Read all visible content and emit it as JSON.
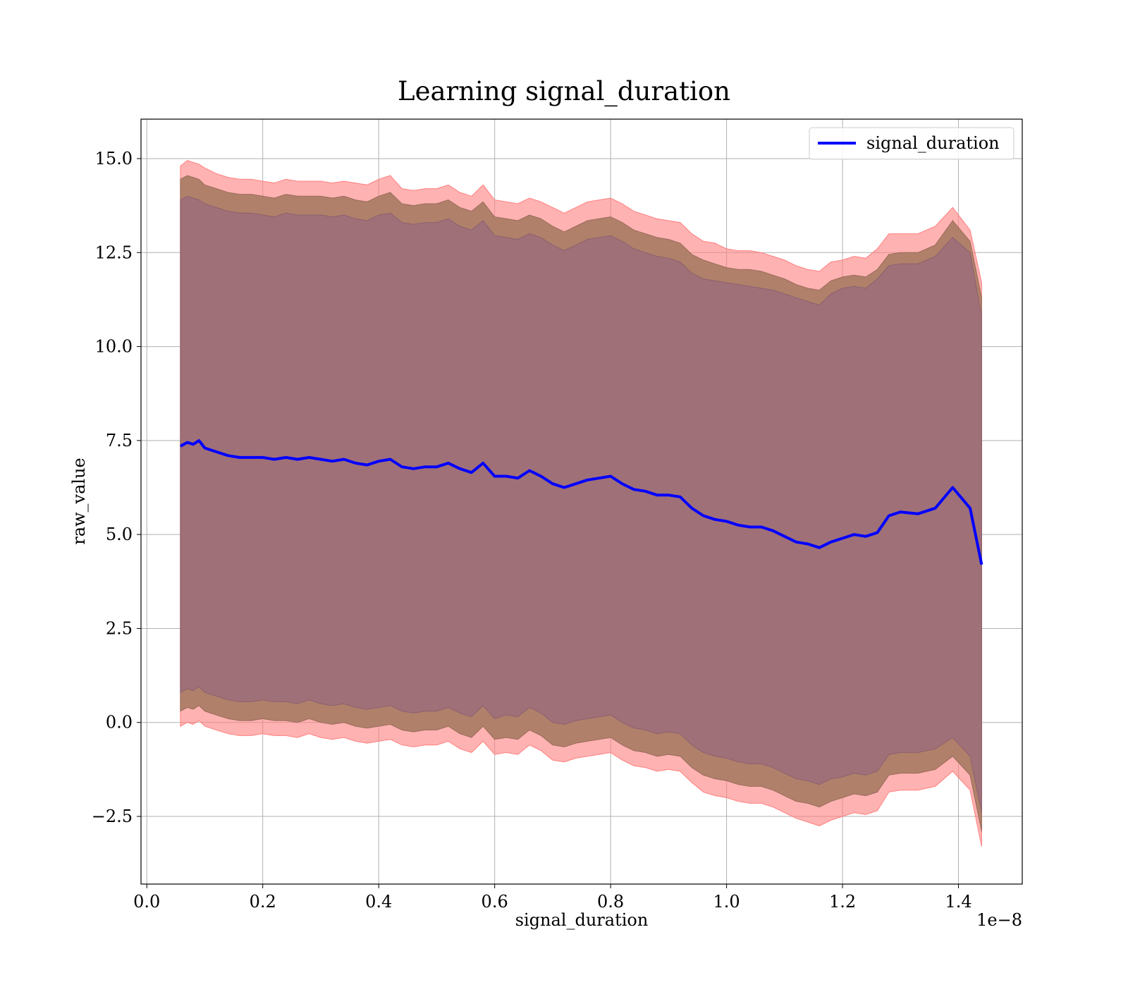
{
  "chart_data": {
    "type": "area",
    "title": "Learning signal_duration",
    "xlabel": "signal_duration",
    "ylabel": "raw_value",
    "x_offset_label": "1e−8",
    "x_scale": 1e-08,
    "xlim": [
      -0.01,
      1.51
    ],
    "ylim": [
      -4.3,
      16.05
    ],
    "xticks": [
      0.0,
      0.2,
      0.4,
      0.6,
      0.8,
      1.0,
      1.2,
      1.4
    ],
    "xtick_labels": [
      "0.0",
      "0.2",
      "0.4",
      "0.6",
      "0.8",
      "1.0",
      "1.2",
      "1.4"
    ],
    "yticks": [
      15.0,
      12.5,
      10.0,
      7.5,
      5.0,
      2.5,
      0.0,
      -2.5
    ],
    "ytick_labels": [
      "15.0",
      "12.5",
      "10.0",
      "7.5",
      "5.0",
      "2.5",
      "0.0",
      "−2.5"
    ],
    "grid": true,
    "legend": {
      "position": "top-right"
    },
    "colors": {
      "mean": "#0000ff",
      "band_outer": "#ff7f7f",
      "band_middle": "#b0806a",
      "band_inner": "#a07078"
    },
    "series": [
      {
        "name": "signal_duration",
        "x": [
          0.058,
          0.07,
          0.08,
          0.09,
          0.1,
          0.12,
          0.14,
          0.16,
          0.18,
          0.2,
          0.22,
          0.24,
          0.26,
          0.28,
          0.3,
          0.32,
          0.34,
          0.36,
          0.38,
          0.4,
          0.42,
          0.44,
          0.46,
          0.48,
          0.5,
          0.52,
          0.54,
          0.56,
          0.58,
          0.6,
          0.62,
          0.64,
          0.66,
          0.68,
          0.7,
          0.72,
          0.74,
          0.76,
          0.78,
          0.8,
          0.82,
          0.84,
          0.86,
          0.88,
          0.9,
          0.92,
          0.94,
          0.96,
          0.98,
          1.0,
          1.02,
          1.04,
          1.06,
          1.08,
          1.1,
          1.12,
          1.14,
          1.16,
          1.18,
          1.2,
          1.22,
          1.24,
          1.26,
          1.28,
          1.3,
          1.33,
          1.36,
          1.39,
          1.42,
          1.44
        ],
        "mean": [
          7.35,
          7.45,
          7.4,
          7.5,
          7.3,
          7.2,
          7.1,
          7.05,
          7.05,
          7.05,
          7.0,
          7.05,
          7.0,
          7.05,
          7.0,
          6.95,
          7.0,
          6.9,
          6.85,
          6.95,
          7.0,
          6.8,
          6.75,
          6.8,
          6.8,
          6.9,
          6.75,
          6.65,
          6.9,
          6.55,
          6.55,
          6.5,
          6.7,
          6.55,
          6.35,
          6.25,
          6.35,
          6.45,
          6.5,
          6.55,
          6.35,
          6.2,
          6.15,
          6.05,
          6.05,
          6.0,
          5.7,
          5.5,
          5.4,
          5.35,
          5.25,
          5.2,
          5.2,
          5.1,
          4.95,
          4.8,
          4.75,
          4.65,
          4.8,
          4.9,
          5.0,
          4.95,
          5.05,
          5.5,
          5.6,
          5.55,
          5.7,
          6.25,
          5.7,
          4.2
        ],
        "outer_upper": [
          14.8,
          14.95,
          14.9,
          14.85,
          14.75,
          14.6,
          14.5,
          14.45,
          14.45,
          14.4,
          14.35,
          14.45,
          14.4,
          14.4,
          14.4,
          14.35,
          14.4,
          14.35,
          14.3,
          14.45,
          14.55,
          14.2,
          14.15,
          14.2,
          14.2,
          14.3,
          14.1,
          14.0,
          14.3,
          13.9,
          13.85,
          13.8,
          13.95,
          13.85,
          13.7,
          13.55,
          13.7,
          13.85,
          13.9,
          13.95,
          13.8,
          13.6,
          13.5,
          13.4,
          13.35,
          13.3,
          13.0,
          12.8,
          12.75,
          12.6,
          12.55,
          12.55,
          12.5,
          12.4,
          12.3,
          12.15,
          12.05,
          12.0,
          12.25,
          12.3,
          12.4,
          12.35,
          12.6,
          13.0,
          13.0,
          13.0,
          13.2,
          13.7,
          13.1,
          11.7
        ],
        "middle_upper": [
          14.45,
          14.55,
          14.5,
          14.45,
          14.3,
          14.2,
          14.1,
          14.05,
          14.05,
          14.0,
          13.95,
          14.05,
          14.0,
          14.0,
          14.0,
          13.95,
          14.0,
          13.9,
          13.85,
          14.0,
          14.1,
          13.8,
          13.75,
          13.8,
          13.8,
          13.9,
          13.7,
          13.6,
          13.85,
          13.45,
          13.4,
          13.35,
          13.5,
          13.4,
          13.2,
          13.05,
          13.2,
          13.35,
          13.4,
          13.45,
          13.3,
          13.1,
          13.0,
          12.9,
          12.85,
          12.75,
          12.45,
          12.3,
          12.2,
          12.1,
          12.05,
          12.05,
          12.0,
          11.9,
          11.8,
          11.65,
          11.55,
          11.5,
          11.75,
          11.85,
          11.9,
          11.85,
          12.05,
          12.45,
          12.5,
          12.5,
          12.7,
          13.35,
          12.8,
          11.3
        ],
        "inner_upper": [
          13.9,
          14.0,
          13.95,
          13.9,
          13.8,
          13.7,
          13.6,
          13.55,
          13.55,
          13.5,
          13.45,
          13.55,
          13.5,
          13.5,
          13.5,
          13.45,
          13.5,
          13.4,
          13.35,
          13.5,
          13.55,
          13.3,
          13.25,
          13.3,
          13.3,
          13.4,
          13.2,
          13.1,
          13.35,
          12.95,
          12.9,
          12.85,
          13.0,
          12.9,
          12.7,
          12.55,
          12.7,
          12.85,
          12.9,
          12.95,
          12.8,
          12.6,
          12.5,
          12.4,
          12.35,
          12.25,
          11.95,
          11.8,
          11.75,
          11.7,
          11.65,
          11.6,
          11.55,
          11.5,
          11.4,
          11.3,
          11.2,
          11.1,
          11.4,
          11.55,
          11.6,
          11.55,
          11.8,
          12.15,
          12.2,
          12.2,
          12.4,
          12.9,
          12.5,
          10.8
        ],
        "inner_lower": [
          0.8,
          0.9,
          0.85,
          0.95,
          0.8,
          0.7,
          0.6,
          0.55,
          0.55,
          0.6,
          0.55,
          0.55,
          0.5,
          0.6,
          0.5,
          0.45,
          0.5,
          0.4,
          0.35,
          0.4,
          0.45,
          0.3,
          0.25,
          0.3,
          0.3,
          0.4,
          0.25,
          0.15,
          0.45,
          0.1,
          0.2,
          0.15,
          0.4,
          0.25,
          0.0,
          -0.05,
          0.05,
          0.1,
          0.15,
          0.2,
          0.0,
          -0.15,
          -0.2,
          -0.3,
          -0.25,
          -0.3,
          -0.6,
          -0.8,
          -0.9,
          -0.95,
          -1.05,
          -1.1,
          -1.1,
          -1.2,
          -1.35,
          -1.5,
          -1.55,
          -1.65,
          -1.5,
          -1.45,
          -1.35,
          -1.4,
          -1.3,
          -0.85,
          -0.8,
          -0.8,
          -0.7,
          -0.4,
          -0.9,
          -2.4
        ],
        "middle_lower": [
          0.3,
          0.4,
          0.35,
          0.45,
          0.3,
          0.2,
          0.1,
          0.05,
          0.05,
          0.1,
          0.05,
          0.05,
          0.0,
          0.1,
          0.0,
          -0.05,
          0.0,
          -0.1,
          -0.15,
          -0.1,
          -0.05,
          -0.2,
          -0.25,
          -0.2,
          -0.2,
          -0.1,
          -0.3,
          -0.4,
          -0.1,
          -0.45,
          -0.4,
          -0.45,
          -0.2,
          -0.35,
          -0.6,
          -0.65,
          -0.55,
          -0.5,
          -0.45,
          -0.4,
          -0.6,
          -0.75,
          -0.8,
          -0.9,
          -0.85,
          -0.9,
          -1.2,
          -1.4,
          -1.5,
          -1.55,
          -1.65,
          -1.7,
          -1.7,
          -1.8,
          -1.95,
          -2.1,
          -2.15,
          -2.25,
          -2.1,
          -2.0,
          -1.9,
          -1.95,
          -1.85,
          -1.4,
          -1.35,
          -1.35,
          -1.25,
          -0.9,
          -1.4,
          -2.9
        ],
        "outer_lower": [
          -0.1,
          0.0,
          -0.05,
          0.05,
          -0.1,
          -0.2,
          -0.3,
          -0.35,
          -0.35,
          -0.3,
          -0.35,
          -0.35,
          -0.4,
          -0.3,
          -0.4,
          -0.45,
          -0.4,
          -0.5,
          -0.55,
          -0.5,
          -0.45,
          -0.6,
          -0.65,
          -0.6,
          -0.6,
          -0.5,
          -0.7,
          -0.8,
          -0.5,
          -0.85,
          -0.8,
          -0.85,
          -0.6,
          -0.75,
          -1.0,
          -1.05,
          -0.95,
          -0.9,
          -0.85,
          -0.8,
          -1.0,
          -1.15,
          -1.2,
          -1.3,
          -1.25,
          -1.3,
          -1.6,
          -1.85,
          -1.95,
          -2.0,
          -2.1,
          -2.15,
          -2.15,
          -2.25,
          -2.4,
          -2.55,
          -2.65,
          -2.75,
          -2.6,
          -2.5,
          -2.4,
          -2.45,
          -2.35,
          -1.85,
          -1.8,
          -1.8,
          -1.7,
          -1.3,
          -1.8,
          -3.3
        ]
      }
    ]
  }
}
